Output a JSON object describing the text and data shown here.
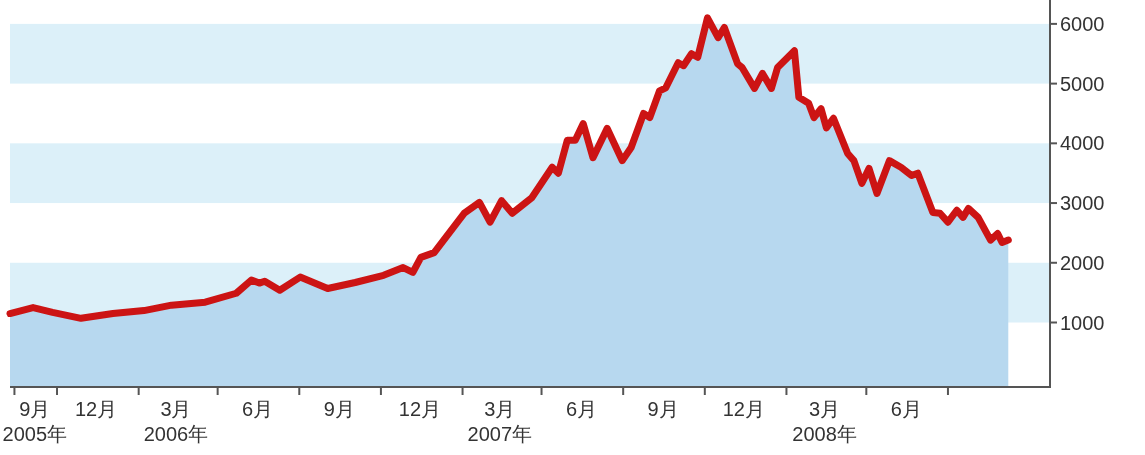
{
  "chart_data": {
    "type": "line",
    "x": [
      "2005-09-09",
      "2005-10-05",
      "2005-10-27",
      "2005-11-28",
      "2006-01-03",
      "2006-02-07",
      "2006-03-10",
      "2006-04-17",
      "2006-05-22",
      "2006-06-08",
      "2006-06-17",
      "2006-06-23",
      "2006-07-10",
      "2006-08-02",
      "2006-09-02",
      "2006-10-03",
      "2006-11-04",
      "2006-11-26",
      "2006-12-07",
      "2006-12-16",
      "2006-12-31",
      "2007-02-03",
      "2007-02-20",
      "2007-03-04",
      "2007-03-17",
      "2007-03-29",
      "2007-04-20",
      "2007-05-13",
      "2007-05-20",
      "2007-05-30",
      "2007-06-08",
      "2007-06-17",
      "2007-06-28",
      "2007-07-14",
      "2007-07-31",
      "2007-08-10",
      "2007-08-24",
      "2007-08-31",
      "2007-09-11",
      "2007-09-18",
      "2007-10-02",
      "2007-10-08",
      "2007-10-17",
      "2007-10-24",
      "2007-11-04",
      "2007-11-16",
      "2007-11-23",
      "2007-12-08",
      "2007-12-13",
      "2007-12-27",
      "2008-01-05",
      "2008-01-15",
      "2008-01-22",
      "2008-02-10",
      "2008-02-15",
      "2008-02-26",
      "2008-03-03",
      "2008-03-11",
      "2008-03-17",
      "2008-03-25",
      "2008-04-10",
      "2008-04-17",
      "2008-04-26",
      "2008-05-04",
      "2008-05-13",
      "2008-05-27",
      "2008-06-09",
      "2008-06-21",
      "2008-06-28",
      "2008-07-15",
      "2008-07-23",
      "2008-08-01",
      "2008-08-11",
      "2008-08-18",
      "2008-08-24",
      "2008-09-04",
      "2008-09-18",
      "2008-09-26",
      "2008-10-01",
      "2008-10-08"
    ],
    "series": [
      {
        "type": "area",
        "color": "#b7d8ef",
        "values": [
          1150,
          1250,
          1170,
          1070,
          1150,
          1200,
          1290,
          1340,
          1490,
          1710,
          1660,
          1690,
          1540,
          1760,
          1570,
          1670,
          1790,
          1920,
          1840,
          2090,
          2170,
          2830,
          3010,
          2680,
          3040,
          2830,
          3090,
          3600,
          3500,
          4050,
          4050,
          4330,
          3760,
          4250,
          3710,
          3930,
          4500,
          4430,
          4880,
          4930,
          5350,
          5300,
          5500,
          5440,
          6100,
          5770,
          5940,
          5330,
          5270,
          4920,
          5170,
          4920,
          5270,
          5550,
          4770,
          4670,
          4430,
          4580,
          4260,
          4420,
          3830,
          3710,
          3330,
          3580,
          3160,
          3710,
          3600,
          3460,
          3500,
          2840,
          2830,
          2680,
          2880,
          2760,
          2910,
          2760,
          2380,
          2490,
          2340,
          2380
        ]
      },
      {
        "color": "#cc1414",
        "values": [
          1150,
          1250,
          1170,
          1070,
          1150,
          1200,
          1290,
          1340,
          1490,
          1710,
          1660,
          1690,
          1540,
          1760,
          1570,
          1670,
          1790,
          1920,
          1840,
          2090,
          2170,
          2830,
          3010,
          2680,
          3040,
          2830,
          3090,
          3600,
          3500,
          4050,
          4050,
          4330,
          3760,
          4250,
          3710,
          3930,
          4500,
          4430,
          4880,
          4930,
          5350,
          5300,
          5500,
          5440,
          6100,
          5770,
          5940,
          5330,
          5270,
          4920,
          5170,
          4920,
          5270,
          5550,
          4770,
          4670,
          4430,
          4580,
          4260,
          4420,
          3830,
          3710,
          3330,
          3580,
          3160,
          3710,
          3600,
          3460,
          3500,
          2840,
          2830,
          2680,
          2880,
          2760,
          2910,
          2760,
          2380,
          2490,
          2340,
          2380
        ]
      }
    ],
    "xlim": [
      "2005-09-09",
      "2008-11-24"
    ],
    "xticks": [
      {
        "value": "2005-09-14",
        "label": null
      },
      {
        "value": "2005-10-07",
        "label": "9月\n2005年"
      },
      {
        "value": "2005-11-01",
        "label": null
      },
      {
        "value": "2005-12-15",
        "label": "12月"
      },
      {
        "value": "2006-02-01",
        "label": null
      },
      {
        "value": "2006-03-15",
        "label": "3月\n2006年"
      },
      {
        "value": "2006-05-01",
        "label": null
      },
      {
        "value": "2006-06-15",
        "label": "6月"
      },
      {
        "value": "2006-08-01",
        "label": null
      },
      {
        "value": "2006-09-15",
        "label": "9月"
      },
      {
        "value": "2006-11-01",
        "label": null
      },
      {
        "value": "2006-12-15",
        "label": "12月"
      },
      {
        "value": "2007-02-01",
        "label": null
      },
      {
        "value": "2007-03-15",
        "label": "3月\n2007年"
      },
      {
        "value": "2007-05-01",
        "label": null
      },
      {
        "value": "2007-06-15",
        "label": "6月"
      },
      {
        "value": "2007-08-01",
        "label": null
      },
      {
        "value": "2007-09-15",
        "label": "9月"
      },
      {
        "value": "2007-11-01",
        "label": null
      },
      {
        "value": "2007-12-15",
        "label": "12月"
      },
      {
        "value": "2008-02-01",
        "label": null
      },
      {
        "value": "2008-03-15",
        "label": "3月\n2008年"
      },
      {
        "value": "2008-05-01",
        "label": null
      },
      {
        "value": "2008-06-15",
        "label": "6月"
      },
      {
        "value": "2008-08-01",
        "label": null
      }
    ],
    "ylim": [
      -80,
      6400
    ],
    "yticks": [
      1000,
      2000,
      3000,
      4000,
      5000,
      6000
    ],
    "bands": [
      {
        "axis": "y",
        "from": 1000,
        "to": 2000,
        "color": "#dcf0f9"
      },
      {
        "axis": "y",
        "from": 3000,
        "to": 4000,
        "color": "#dcf0f9"
      },
      {
        "axis": "y",
        "from": 5000,
        "to": 6000,
        "color": "#dcf0f9"
      }
    ],
    "line_style": "solid",
    "marker": "none"
  }
}
